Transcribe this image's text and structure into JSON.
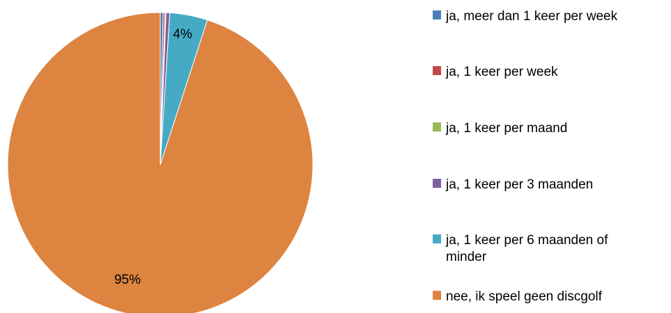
{
  "chart_data": {
    "type": "pie",
    "title": "",
    "legend_position": "right",
    "categories": [
      "ja, meer dan 1 keer per week",
      "ja, 1 keer per week",
      "ja, 1 keer per maand",
      "ja, 1 keer per 3 maanden",
      "ja, 1 keer per 6 maanden of minder",
      "nee, ik speel geen discgolf"
    ],
    "values": [
      0.3,
      0.2,
      0.1,
      0.4,
      4.0,
      95.0
    ],
    "colors": [
      "#4a7ebb",
      "#be4b48",
      "#98b954",
      "#7d60a0",
      "#46aac5",
      "#dd8440"
    ],
    "data_labels": [
      "",
      "",
      "",
      "",
      "4%",
      "95%"
    ],
    "legend_lines": [
      [
        "ja, meer dan 1 keer per week"
      ],
      [
        "ja, 1 keer per week"
      ],
      [
        "ja, 1 keer per maand"
      ],
      [
        "ja, 1 keer per 3 maanden"
      ],
      [
        "ja, 1 keer per 6 maanden of",
        "minder"
      ],
      [
        "nee, ik speel geen discgolf"
      ]
    ]
  }
}
